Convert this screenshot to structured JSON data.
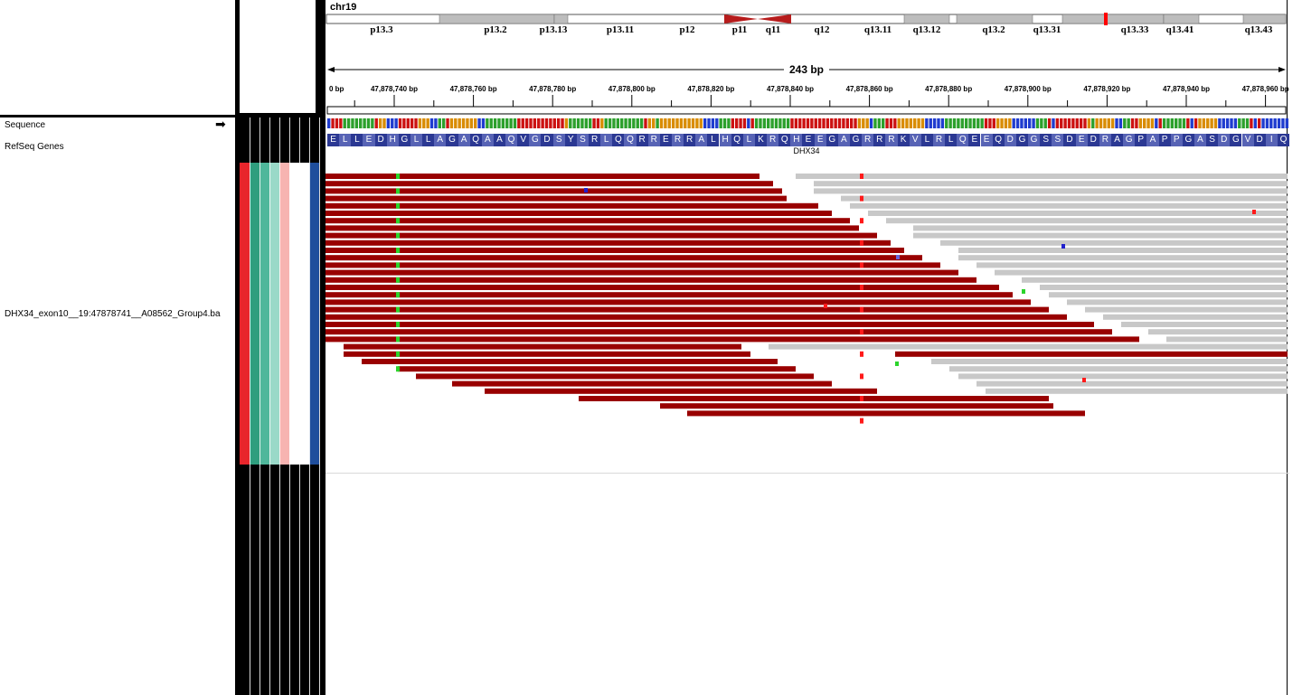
{
  "chromosome": "chr19",
  "ideogram": {
    "bands": [
      {
        "label": "p13.3",
        "center": 62
      },
      {
        "label": "p13.2",
        "center": 188
      },
      {
        "label": "p13.13",
        "center": 252
      },
      {
        "label": "p13.11",
        "center": 326
      },
      {
        "label": "p12",
        "center": 400
      },
      {
        "label": "p11",
        "center": 458
      },
      {
        "label": "q11",
        "center": 495
      },
      {
        "label": "q12",
        "center": 549
      },
      {
        "label": "q13.11",
        "center": 611
      },
      {
        "label": "q13.12",
        "center": 665
      },
      {
        "label": "q13.2",
        "center": 739
      },
      {
        "label": "q13.31",
        "center": 798
      },
      {
        "label": "q13.33",
        "center": 895
      },
      {
        "label": "q13.41",
        "center": 945
      },
      {
        "label": "q13.43",
        "center": 1032
      }
    ]
  },
  "ruler": {
    "width_label": "243 bp",
    "first_partial_label": "0 bp",
    "ticks": [
      "47,878,740 bp",
      "47,878,760 bp",
      "47,878,780 bp",
      "47,878,800 bp",
      "47,878,820 bp",
      "47,878,840 bp",
      "47,878,860 bp",
      "47,878,880 bp",
      "47,878,900 bp",
      "47,878,920 bp",
      "47,878,940 bp",
      "47,878,960 bp"
    ]
  },
  "tracks": {
    "sequence": "Sequence",
    "refseq": "RefSeq Genes",
    "alignment": "DHX34_exon10__19:47878741__A08562_Group4.ba"
  },
  "gene": {
    "name": "DHX34",
    "amino_acids": "ELLEDHGLLAGAQAAQVGDSYSRLQQRRERRALHQLKRQHEEGAGRRRKVLRLQEEQDGGSSDEDRAGPAPPGASDGVDIQ"
  },
  "colors": {
    "read_forward": "#990000",
    "read_reverse": "#c8c8c8",
    "aa_dark": "#2b3893",
    "aa_light": "#5763b5",
    "centromere": "#b71c1c",
    "current_locus": "#ff0000",
    "mismatch_red": "#ff1a1a",
    "mismatch_green": "#2bd42b",
    "mismatch_blue": "#2020cc",
    "attr_colors": [
      "#e8252b",
      "#2f9e7e",
      "#4fb79b",
      "#9ad9c8",
      "#f7b4b1",
      "#ffffff",
      "#ffffff",
      "#1f4e9c"
    ]
  },
  "icons": {
    "sequence_strand": "arrow-right-icon"
  }
}
